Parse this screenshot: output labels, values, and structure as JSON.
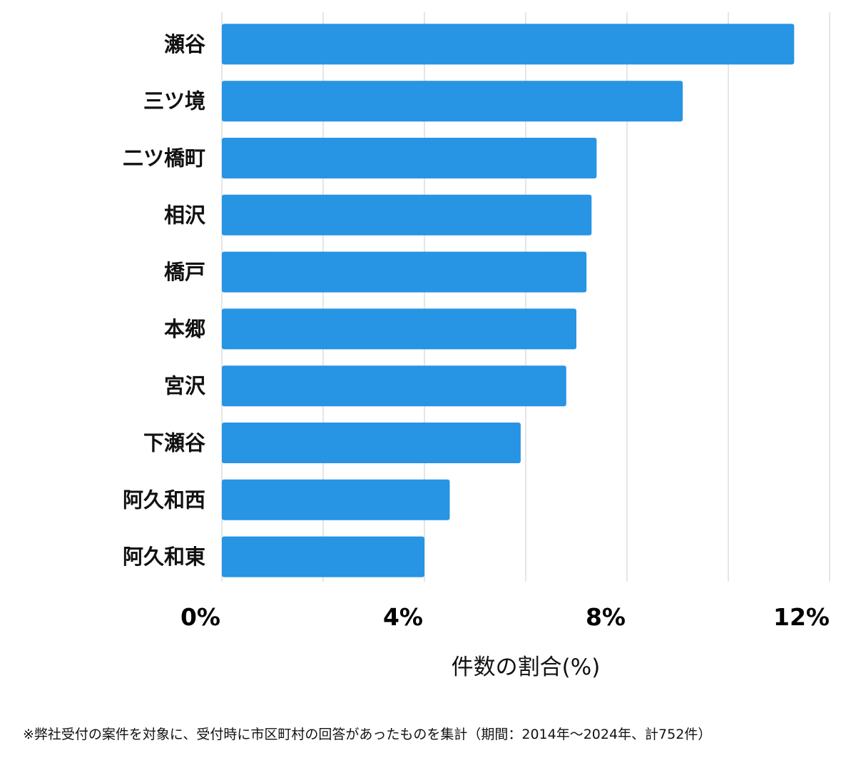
{
  "chart_data": {
    "type": "bar",
    "orientation": "horizontal",
    "categories": [
      "瀬谷",
      "三ツ境",
      "二ツ橋町",
      "相沢",
      "橋戸",
      "本郷",
      "宮沢",
      "下瀬谷",
      "阿久和西",
      "阿久和東"
    ],
    "values": [
      11.3,
      9.1,
      7.4,
      7.3,
      7.2,
      7.0,
      6.8,
      5.9,
      4.5,
      4.0
    ],
    "xticks": [
      "0%",
      "4%",
      "8%",
      "12%"
    ],
    "xlim": [
      0,
      12
    ],
    "xlabel": "件数の割合(%)",
    "grid": true,
    "bar_color": "#2794e4",
    "grid_color": "#dddddd"
  },
  "footnote": "※弊社受付の案件を対象に、受付時に市区町村の回答があったものを集計（期間：2014年～2024年、計752件）"
}
